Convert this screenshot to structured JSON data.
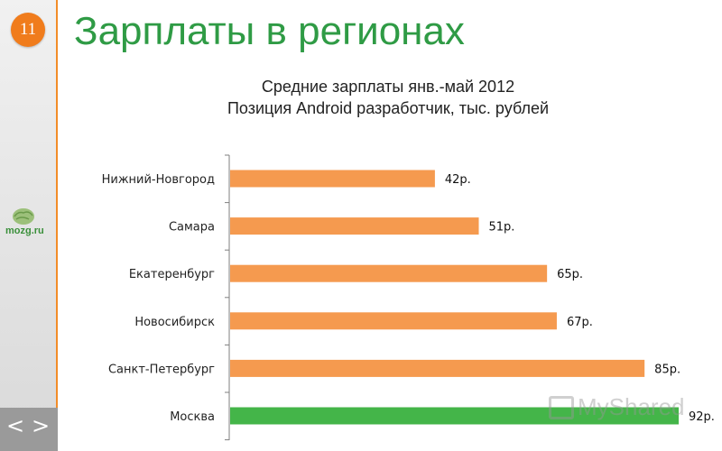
{
  "slide": {
    "number": "11",
    "title": "Зарплаты в регионах"
  },
  "logo": {
    "text": "mozg.ru"
  },
  "watermark": {
    "text": "MyShared"
  },
  "colors": {
    "accent": "#f28c28",
    "bar_default": "#f59a4f",
    "bar_highlight": "#44b549",
    "title": "#2f9b45"
  },
  "chart_data": {
    "type": "bar",
    "orientation": "horizontal",
    "title": "Средние зарплаты янв.-май 2012",
    "subtitle": "Позиция Android разработчик,  тыс. рублей",
    "categories": [
      "Нижний-Новгород",
      "Самара",
      "Екатеренбург",
      "Новосибирск",
      "Санкт-Петербург",
      "Москва"
    ],
    "values": [
      42,
      51,
      65,
      67,
      85,
      92
    ],
    "data_labels": [
      "42р.",
      "51р.",
      "65р.",
      "67р.",
      "85р.",
      "92р."
    ],
    "highlight_index": 5,
    "xlim": [
      0,
      92
    ],
    "grid": false
  }
}
